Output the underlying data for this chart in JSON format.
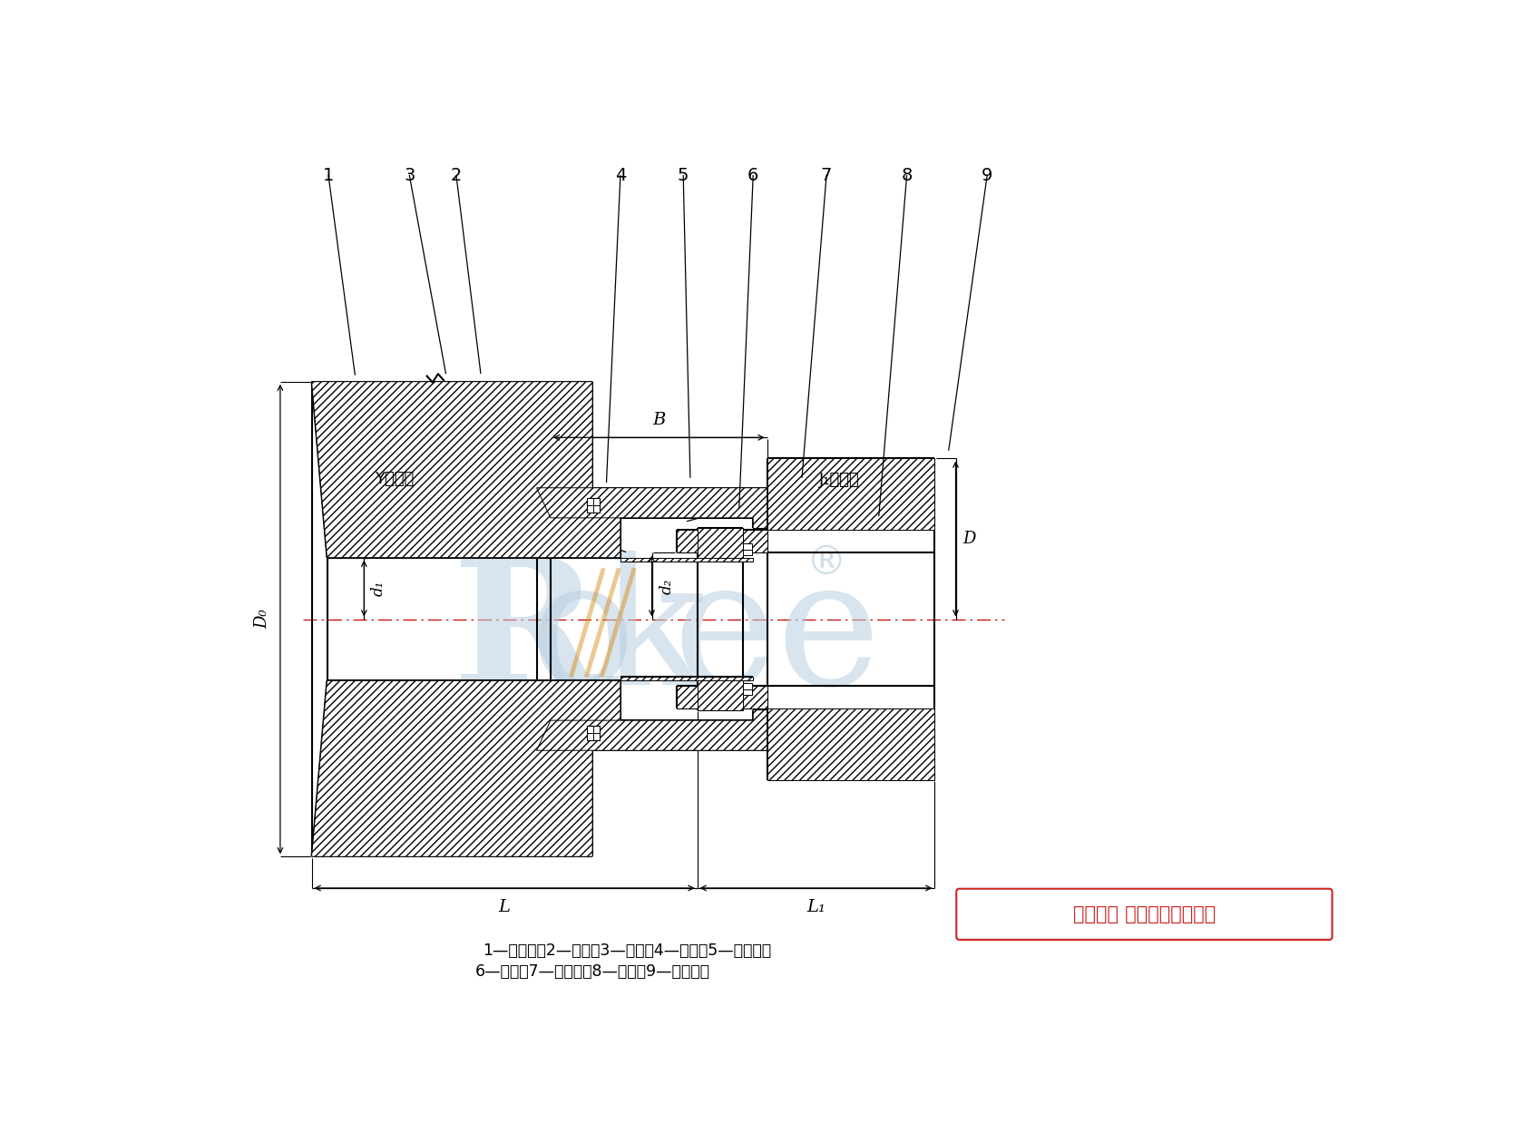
{
  "bg_color": "#ffffff",
  "line_color": "#000000",
  "copyright_text": "版权所有 侵权必被严厉追究",
  "footnote1": "1—制动轮；2—螺栓；3—坠圈；4—外套；5—内挡板；",
  "footnote2": "6—柱销；7—外挡圈；8—挡圈；9—半联轴器",
  "dim_B": "B",
  "dim_L": "L",
  "dim_L1": "L₁",
  "dim_D0": "D₀",
  "dim_d1": "d₁",
  "dim_d2": "d₂",
  "dim_D": "D",
  "label_Y": "Y型轴孔",
  "label_J1": "J₁型轴孔",
  "watermark_color": "#b8cfe0"
}
